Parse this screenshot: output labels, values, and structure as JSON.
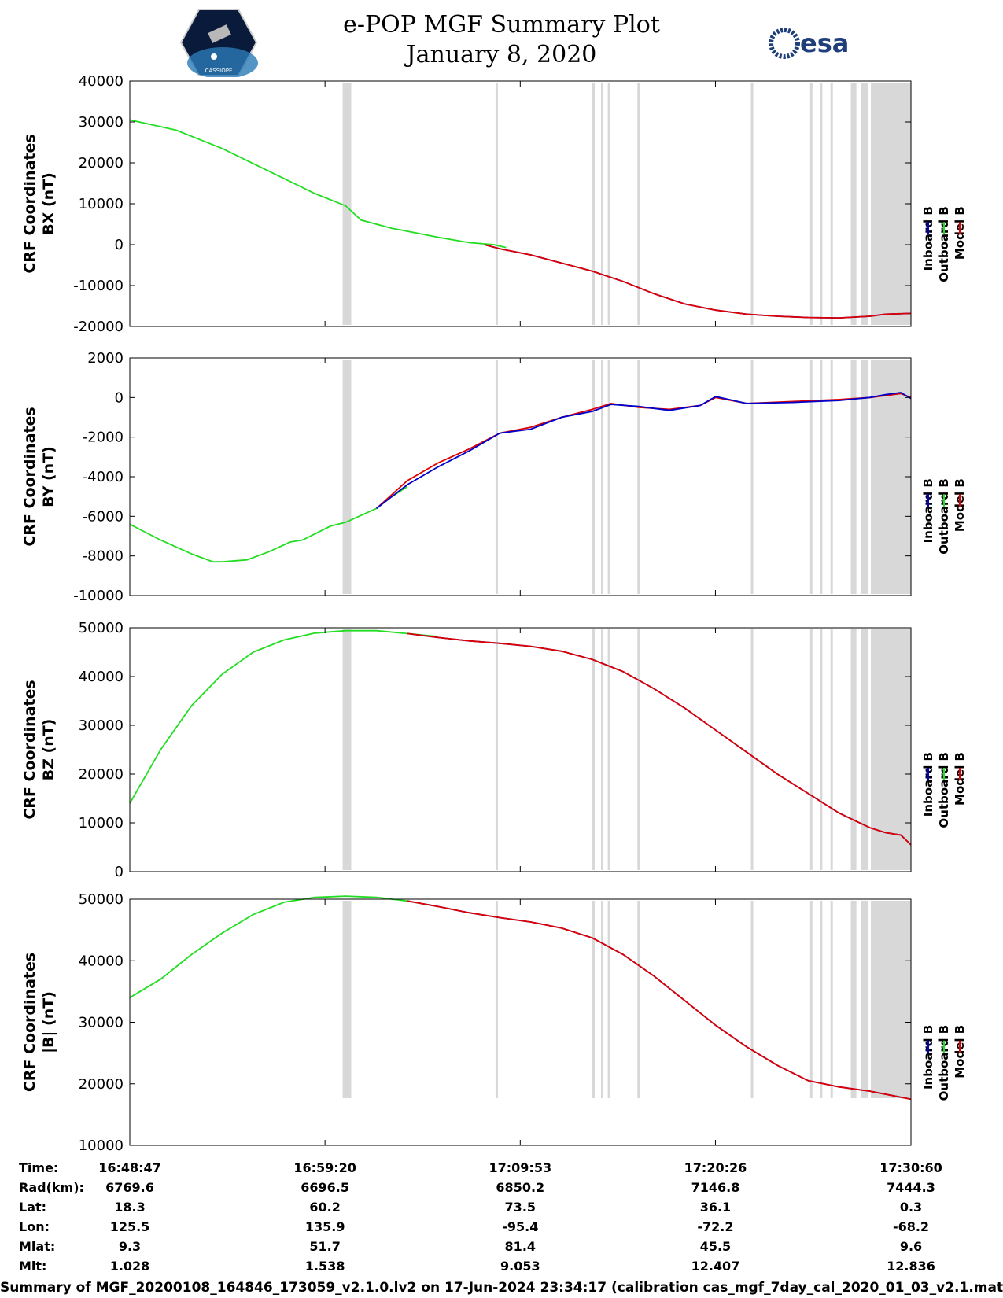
{
  "header": {
    "title": "e-POP MGF Summary Plot",
    "date": "January 8, 2020",
    "esa_logo_text": "esa",
    "cassiope_logo_text": "CASSIOPE"
  },
  "colors": {
    "inboard": "#0000cc",
    "outboard": "#22dd22",
    "model": "#dd0000",
    "gap_shading": "#d8d8d8"
  },
  "legend": [
    "Inboard B",
    "Outboard B",
    "Model B"
  ],
  "time_axis": {
    "range_s": [
      0,
      2533
    ],
    "tick_seconds": [
      0,
      633,
      1266,
      1899,
      2533
    ]
  },
  "data_gaps_s": [
    [
      690,
      718
    ],
    [
      1186,
      1192
    ],
    [
      1500,
      1506
    ],
    [
      1528,
      1534
    ],
    [
      1550,
      1556
    ],
    [
      1646,
      1652
    ],
    [
      2014,
      2020
    ],
    [
      2206,
      2212
    ],
    [
      2238,
      2244
    ],
    [
      2272,
      2278
    ],
    [
      2338,
      2356
    ],
    [
      2370,
      2394
    ],
    [
      2403,
      2533
    ]
  ],
  "footer": "Summary of MGF_20200108_164846_173059_v2.1.0.lv2 on 17-Jun-2024 23:34:17 (calibration cas_mgf_7day_cal_2020_01_03_v2.1.mat )",
  "info_table": {
    "rows": [
      {
        "label": "Time:",
        "values": [
          "16:48:47",
          "16:59:20",
          "17:09:53",
          "17:20:26",
          "17:30:60"
        ]
      },
      {
        "label": "Rad(km):",
        "values": [
          "6769.6",
          "6696.5",
          "6850.2",
          "7146.8",
          "7444.3"
        ]
      },
      {
        "label": "Lat:",
        "values": [
          "18.3",
          "60.2",
          "73.5",
          "36.1",
          "0.3"
        ]
      },
      {
        "label": "Lon:",
        "values": [
          "125.5",
          "135.9",
          "-95.4",
          "-72.2",
          "-68.2"
        ]
      },
      {
        "label": "Mlat:",
        "values": [
          "9.3",
          "51.7",
          "81.4",
          "45.5",
          "9.6"
        ]
      },
      {
        "label": "Mlt:",
        "values": [
          "1.028",
          "1.538",
          "9.053",
          "12.407",
          "12.836"
        ]
      }
    ]
  },
  "chart_data": [
    {
      "type": "line",
      "ylabel_line1": "CRF Coordinates",
      "ylabel_line2": "BX (nT)",
      "ylim": [
        -20000,
        40000
      ],
      "yticks": [
        40000,
        30000,
        20000,
        10000,
        0,
        -10000,
        -20000
      ],
      "ytick_labels": [
        "40000",
        "30000",
        "20000",
        "10000",
        "0",
        "-10000",
        "-20000"
      ],
      "series": [
        {
          "name": "Outboard B",
          "color_key": "outboard",
          "x": [
            0,
            150,
            300,
            450,
            600,
            700,
            750,
            850,
            1000,
            1100,
            1180,
            1220
          ],
          "y": [
            30500,
            28000,
            23500,
            18000,
            12500,
            9500,
            6000,
            4000,
            1800,
            500,
            0,
            -700
          ]
        },
        {
          "name": "Inboard B",
          "color_key": "inboard",
          "x": [
            1150,
            1200,
            1300,
            1400,
            1500,
            1600,
            1700,
            1800,
            1900,
            2000,
            2100,
            2200,
            2300,
            2400,
            2450,
            2533
          ],
          "y": [
            0,
            -1000,
            -2500,
            -4500,
            -6500,
            -9000,
            -12000,
            -14500,
            -16000,
            -17000,
            -17500,
            -17800,
            -17900,
            -17500,
            -17000,
            -16800
          ]
        },
        {
          "name": "Model B",
          "color_key": "model",
          "x": [
            1150,
            1200,
            1300,
            1400,
            1500,
            1600,
            1700,
            1800,
            1900,
            2000,
            2100,
            2200,
            2300,
            2400,
            2450,
            2533
          ],
          "y": [
            0,
            -1000,
            -2500,
            -4500,
            -6500,
            -9000,
            -12000,
            -14500,
            -16000,
            -17000,
            -17500,
            -17800,
            -17900,
            -17500,
            -17000,
            -16800
          ]
        }
      ]
    },
    {
      "type": "line",
      "ylabel_line1": "CRF Coordinates",
      "ylabel_line2": "BY (nT)",
      "ylim": [
        -10000,
        2000
      ],
      "yticks": [
        2000,
        0,
        -2000,
        -4000,
        -6000,
        -8000,
        -10000
      ],
      "ytick_labels": [
        "2000",
        "0",
        "-2000",
        "-4000",
        "-6000",
        "-8000",
        "-10000"
      ],
      "series": [
        {
          "name": "Outboard B",
          "color_key": "outboard",
          "x": [
            0,
            100,
            200,
            270,
            300,
            380,
            450,
            520,
            560,
            650,
            700,
            800,
            850,
            900
          ],
          "y": [
            -6400,
            -7200,
            -7900,
            -8300,
            -8300,
            -8200,
            -7800,
            -7300,
            -7200,
            -6500,
            -6300,
            -5600,
            -5000,
            -4500
          ]
        },
        {
          "name": "Model B",
          "color_key": "model",
          "x": [
            800,
            900,
            1000,
            1100,
            1200,
            1300,
            1400,
            1500,
            1560,
            1650,
            1750,
            1850,
            1900,
            2000,
            2150,
            2300,
            2400,
            2450,
            2500,
            2533
          ],
          "y": [
            -5600,
            -4200,
            -3300,
            -2600,
            -1800,
            -1500,
            -1000,
            -600,
            -300,
            -500,
            -600,
            -400,
            0,
            -300,
            -200,
            -100,
            0,
            100,
            200,
            0
          ]
        },
        {
          "name": "Inboard B",
          "color_key": "inboard",
          "x": [
            800,
            900,
            1000,
            1100,
            1200,
            1300,
            1400,
            1500,
            1560,
            1650,
            1750,
            1850,
            1900,
            2000,
            2150,
            2300,
            2400,
            2450,
            2500,
            2533
          ],
          "y": [
            -5600,
            -4400,
            -3500,
            -2700,
            -1800,
            -1600,
            -1000,
            -700,
            -350,
            -450,
            -650,
            -400,
            50,
            -300,
            -250,
            -150,
            0,
            150,
            250,
            -50
          ]
        }
      ]
    },
    {
      "type": "line",
      "ylabel_line1": "CRF Coordinates",
      "ylabel_line2": "BZ (nT)",
      "ylim": [
        0,
        50000
      ],
      "yticks": [
        50000,
        40000,
        30000,
        20000,
        10000,
        0
      ],
      "ytick_labels": [
        "50000",
        "40000",
        "30000",
        "20000",
        "10000",
        "0"
      ],
      "series": [
        {
          "name": "Outboard B",
          "color_key": "outboard",
          "x": [
            0,
            100,
            200,
            300,
            400,
            500,
            600,
            700,
            800,
            900,
            1000
          ],
          "y": [
            14000,
            25000,
            34000,
            40500,
            45000,
            47500,
            48900,
            49400,
            49400,
            48800,
            48200
          ]
        },
        {
          "name": "Inboard B",
          "color_key": "inboard",
          "x": [
            900,
            1000,
            1100,
            1200,
            1300,
            1400,
            1500,
            1600,
            1700,
            1800,
            1900,
            2000,
            2100,
            2200,
            2300,
            2350,
            2400,
            2450,
            2500,
            2533
          ],
          "y": [
            48800,
            48000,
            47300,
            46800,
            46200,
            45200,
            43500,
            41000,
            37500,
            33500,
            29000,
            24500,
            20000,
            16000,
            12000,
            10500,
            9000,
            8000,
            7500,
            5500
          ]
        },
        {
          "name": "Model B",
          "color_key": "model",
          "x": [
            900,
            1000,
            1100,
            1200,
            1300,
            1400,
            1500,
            1600,
            1700,
            1800,
            1900,
            2000,
            2100,
            2200,
            2300,
            2350,
            2400,
            2450,
            2500,
            2533
          ],
          "y": [
            48800,
            48000,
            47300,
            46800,
            46200,
            45200,
            43500,
            41000,
            37500,
            33500,
            29000,
            24500,
            20000,
            16000,
            12000,
            10500,
            9000,
            8000,
            7500,
            5500
          ]
        }
      ]
    },
    {
      "type": "line",
      "ylabel_line1": "CRF Coordinates",
      "ylabel_line2": "|B| (nT)",
      "ylim": [
        10000,
        50000
      ],
      "yticks": [
        50000,
        40000,
        30000,
        20000,
        10000
      ],
      "ytick_labels": [
        "50000",
        "40000",
        "30000",
        "20000",
        "10000"
      ],
      "series": [
        {
          "name": "Outboard B",
          "color_key": "outboard",
          "x": [
            0,
            100,
            200,
            300,
            400,
            500,
            600,
            700,
            800,
            900,
            1000
          ],
          "y": [
            34000,
            37000,
            41000,
            44500,
            47500,
            49500,
            50300,
            50500,
            50300,
            49700,
            48800
          ]
        },
        {
          "name": "Inboard B",
          "color_key": "inboard",
          "x": [
            900,
            1000,
            1100,
            1200,
            1300,
            1400,
            1500,
            1600,
            1700,
            1800,
            1900,
            2000,
            2100,
            2200,
            2300,
            2400,
            2533
          ],
          "y": [
            49700,
            48800,
            47800,
            47000,
            46300,
            45300,
            43700,
            41000,
            37500,
            33500,
            29500,
            26000,
            23000,
            20500,
            19500,
            18800,
            17500
          ]
        },
        {
          "name": "Model B",
          "color_key": "model",
          "x": [
            900,
            1000,
            1100,
            1200,
            1300,
            1400,
            1500,
            1600,
            1700,
            1800,
            1900,
            2000,
            2100,
            2200,
            2300,
            2400,
            2533
          ],
          "y": [
            49700,
            48800,
            47800,
            47000,
            46300,
            45300,
            43700,
            41000,
            37500,
            33500,
            29500,
            26000,
            23000,
            20500,
            19500,
            18800,
            17500
          ]
        }
      ]
    }
  ]
}
